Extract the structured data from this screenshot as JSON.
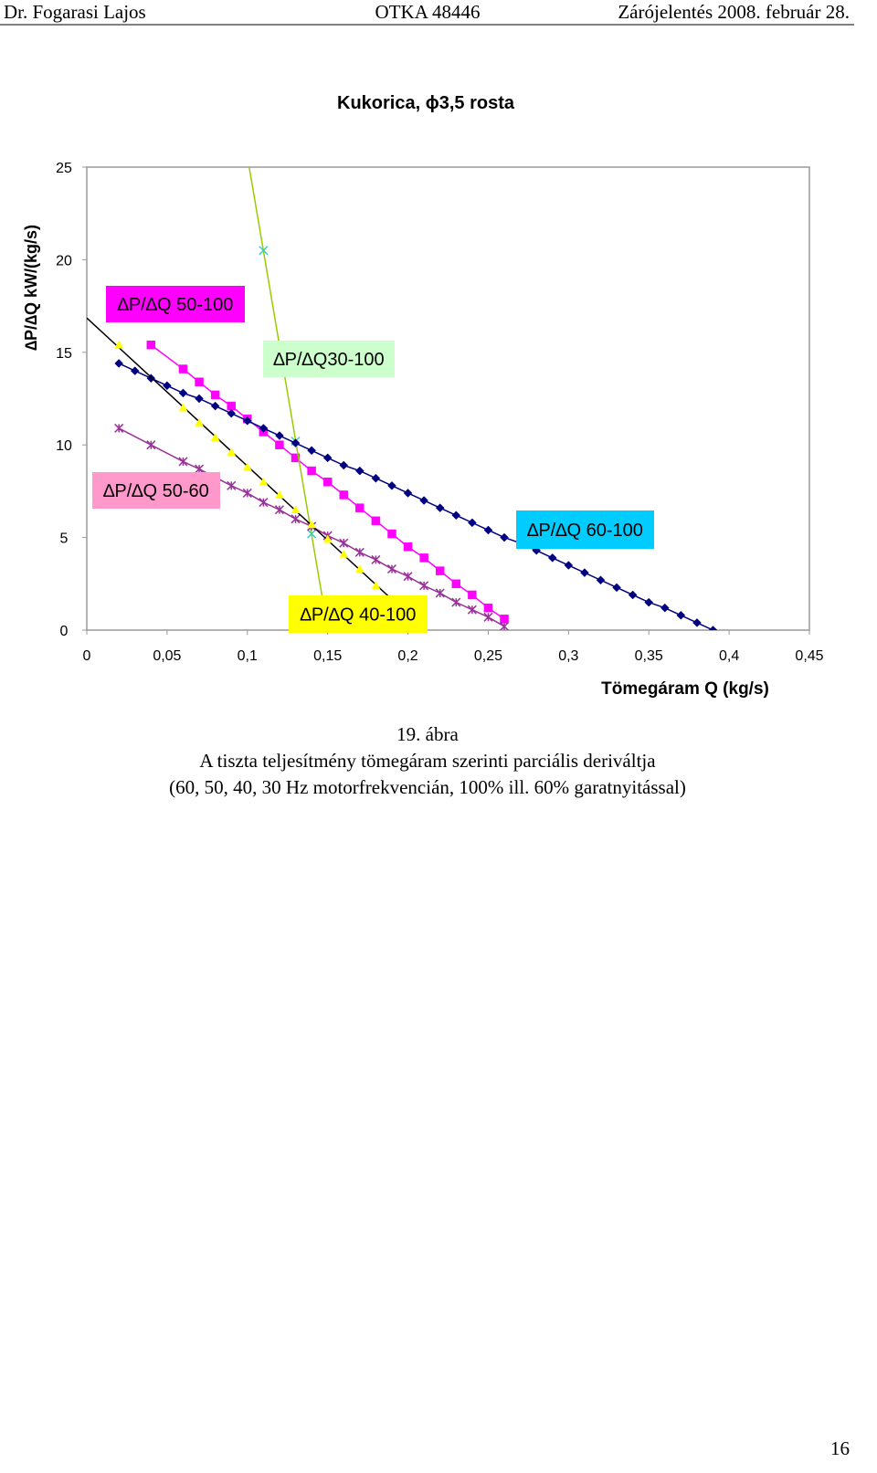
{
  "header": {
    "author": "Dr. Fogarasi Lajos",
    "project": "OTKA 48446",
    "date": "Zárójelentés 2008. február 28."
  },
  "chart_data": {
    "type": "scatter",
    "title": "Kukorica, ϕ3,5 rosta",
    "x_label": "Tömegáram Q (kg/s)",
    "y_label": "∆P/∆Q kW/(kg/s)",
    "xlim": [
      0,
      0.45
    ],
    "ylim": [
      0,
      25
    ],
    "xticks": [
      0,
      {
        "value": 0.05,
        "label": "0,05"
      },
      {
        "value": 0.1,
        "label": "0,1"
      },
      {
        "value": 0.15,
        "label": "0,15"
      },
      {
        "value": 0.2,
        "label": "0,2"
      },
      {
        "value": 0.25,
        "label": "0,25"
      },
      {
        "value": 0.3,
        "label": "0,3"
      },
      {
        "value": 0.35,
        "label": "0,35"
      },
      {
        "value": 0.4,
        "label": "0,4"
      },
      {
        "value": 0.45,
        "label": "0,45"
      }
    ],
    "yticks": [
      0,
      5,
      10,
      15,
      20,
      25
    ],
    "grid": false,
    "series": [
      {
        "name": "∆P/∆Q 50-100",
        "color": "#ff00ff",
        "marker": "square",
        "line": true,
        "label_color": "#ff00ff",
        "x": [
          0.04,
          0.06,
          0.07,
          0.08,
          0.09,
          0.1,
          0.11,
          0.12,
          0.13,
          0.14,
          0.15,
          0.16,
          0.17,
          0.18,
          0.19,
          0.2,
          0.21,
          0.22,
          0.23,
          0.24,
          0.25,
          0.26
        ],
        "values": [
          15.4,
          14.1,
          13.4,
          12.7,
          12.1,
          11.4,
          10.7,
          10.0,
          9.3,
          8.6,
          8.0,
          7.3,
          6.6,
          5.9,
          5.2,
          4.5,
          3.9,
          3.2,
          2.5,
          1.9,
          1.2,
          0.6
        ]
      },
      {
        "name": "∆P/∆Q30-100",
        "color": "#33cccc",
        "marker": "x",
        "line": false,
        "trendline_color": "#99cc00",
        "label_color": "#ccffcc",
        "x": [
          0.11,
          0.13,
          0.14
        ],
        "values": [
          20.5,
          10.2,
          5.2
        ]
      },
      {
        "name": "∆P/∆Q 50-60",
        "color": "#993399",
        "marker": "asterisk",
        "line": true,
        "label_color": "#ff99cc",
        "x": [
          0.02,
          0.04,
          0.06,
          0.07,
          0.09,
          0.1,
          0.11,
          0.12,
          0.13,
          0.14,
          0.15,
          0.16,
          0.17,
          0.18,
          0.19,
          0.2,
          0.21,
          0.22,
          0.23,
          0.24,
          0.25,
          0.26
        ],
        "values": [
          10.9,
          10.0,
          9.1,
          8.7,
          7.8,
          7.4,
          6.9,
          6.5,
          6.0,
          5.6,
          5.1,
          4.7,
          4.2,
          3.8,
          3.3,
          2.9,
          2.4,
          2.0,
          1.5,
          1.1,
          0.7,
          0.2
        ]
      },
      {
        "name": "∆P/∆Q 60-100",
        "color": "#000080",
        "marker": "diamond",
        "line": true,
        "label_color": "#00ccff",
        "x": [
          0.02,
          0.03,
          0.04,
          0.05,
          0.06,
          0.07,
          0.08,
          0.09,
          0.1,
          0.11,
          0.12,
          0.13,
          0.14,
          0.15,
          0.16,
          0.17,
          0.18,
          0.19,
          0.2,
          0.21,
          0.22,
          0.23,
          0.24,
          0.25,
          0.26,
          0.27,
          0.28,
          0.29,
          0.3,
          0.31,
          0.32,
          0.33,
          0.34,
          0.35,
          0.36,
          0.37,
          0.38,
          0.39
        ],
        "values": [
          14.4,
          14.0,
          13.6,
          13.2,
          12.8,
          12.5,
          12.1,
          11.7,
          11.3,
          10.9,
          10.5,
          10.1,
          9.7,
          9.3,
          8.9,
          8.6,
          8.2,
          7.8,
          7.4,
          7.0,
          6.6,
          6.2,
          5.8,
          5.4,
          5.0,
          4.7,
          4.3,
          3.9,
          3.5,
          3.1,
          2.7,
          2.3,
          1.9,
          1.5,
          1.2,
          0.8,
          0.4,
          0.0
        ]
      },
      {
        "name": "∆P/∆Q 40-100",
        "color": "#ffff00",
        "marker": "triangle",
        "line": false,
        "trendline_color": "#000000",
        "label_color": "#ffff00",
        "x": [
          0.02,
          0.06,
          0.07,
          0.08,
          0.09,
          0.1,
          0.11,
          0.12,
          0.13,
          0.14,
          0.15,
          0.16,
          0.17,
          0.18
        ],
        "values": [
          15.4,
          12.0,
          11.2,
          10.4,
          9.6,
          8.8,
          8.0,
          7.3,
          6.5,
          5.7,
          4.9,
          4.1,
          3.3,
          2.4
        ]
      }
    ]
  },
  "caption": [
    "19. ábra",
    "A tiszta teljesítmény tömegáram szerinti parciális deriváltja",
    "(60, 50, 40, 30 Hz motorfrekvencián, 100% ill. 60% garatnyitással)"
  ],
  "page_number": "16"
}
